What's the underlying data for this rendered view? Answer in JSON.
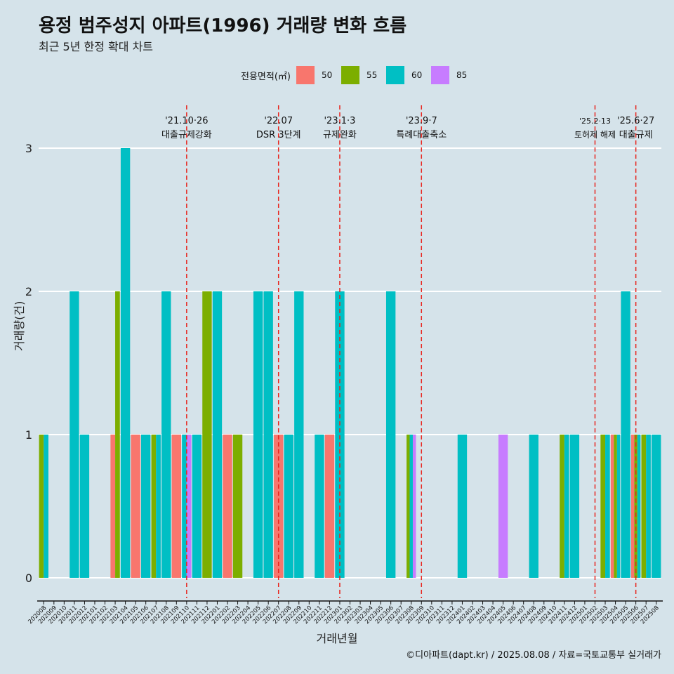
{
  "title": "용정 범주성지 아파트(1996) 거래량 변화 흐름",
  "subtitle": "최근 5년 한정 확대 차트",
  "caption": "©디아파트(dapt.kr) / 2025.08.08 / 자료=국토교통부 실거래가",
  "colors": {
    "50": "#f8766d",
    "55": "#7cae00",
    "60": "#00bfc4",
    "85": "#c77cff",
    "background": "#d5e3ea",
    "event_line": "#e8261f"
  },
  "chart_data": {
    "type": "bar",
    "xlabel": "거래년월",
    "ylabel": "거래량(건)",
    "ylim": [
      0,
      3
    ],
    "yticks": [
      0,
      1,
      2,
      3
    ],
    "legend_title": "전용면적(㎡)",
    "legend_position": "top",
    "grid": true,
    "categories": [
      "202008",
      "202009",
      "202010",
      "202011",
      "202012",
      "202101",
      "202102",
      "202103",
      "202104",
      "202105",
      "202106",
      "202107",
      "202108",
      "202109",
      "202110",
      "202111",
      "202112",
      "202201",
      "202202",
      "202203",
      "202204",
      "202205",
      "202206",
      "202207",
      "202208",
      "202209",
      "202210",
      "202211",
      "202212",
      "202301",
      "202302",
      "202303",
      "202304",
      "202305",
      "202306",
      "202307",
      "202308",
      "202309",
      "202310",
      "202311",
      "202312",
      "202401",
      "202402",
      "202403",
      "202404",
      "202405",
      "202406",
      "202407",
      "202408",
      "202409",
      "202410",
      "202411",
      "202412",
      "202501",
      "202502",
      "202503",
      "202504",
      "202505",
      "202506",
      "202507",
      "202508"
    ],
    "series": [
      {
        "name": "50",
        "values": [
          0,
          0,
          0,
          0,
          0,
          0,
          0,
          1,
          0,
          1,
          0,
          0,
          0,
          1,
          0,
          0,
          0,
          0,
          1,
          0,
          0,
          0,
          0,
          1,
          0,
          0,
          0,
          0,
          1,
          0,
          0,
          0,
          0,
          0,
          0,
          0,
          0,
          0,
          0,
          0,
          0,
          0,
          0,
          0,
          0,
          0,
          0,
          0,
          0,
          0,
          0,
          0,
          0,
          0,
          0,
          0,
          1,
          0,
          1,
          0,
          0
        ]
      },
      {
        "name": "55",
        "values": [
          1,
          0,
          0,
          0,
          0,
          0,
          0,
          2,
          0,
          0,
          0,
          1,
          0,
          0,
          0,
          0,
          2,
          0,
          0,
          1,
          0,
          0,
          0,
          0,
          0,
          0,
          0,
          0,
          0,
          0,
          0,
          0,
          0,
          0,
          0,
          0,
          1,
          0,
          0,
          0,
          0,
          0,
          0,
          0,
          0,
          0,
          0,
          0,
          0,
          0,
          0,
          1,
          0,
          0,
          0,
          1,
          1,
          0,
          1,
          1,
          0
        ]
      },
      {
        "name": "60",
        "values": [
          1,
          0,
          0,
          2,
          1,
          0,
          0,
          0,
          3,
          0,
          1,
          1,
          2,
          0,
          1,
          1,
          0,
          2,
          0,
          0,
          0,
          2,
          2,
          0,
          1,
          2,
          0,
          1,
          0,
          2,
          0,
          0,
          0,
          0,
          2,
          0,
          1,
          0,
          0,
          0,
          0,
          1,
          0,
          0,
          0,
          0,
          0,
          0,
          1,
          0,
          0,
          1,
          1,
          0,
          0,
          1,
          1,
          2,
          1,
          1,
          1
        ]
      },
      {
        "name": "85",
        "values": [
          0,
          0,
          0,
          0,
          0,
          0,
          0,
          0,
          0,
          0,
          0,
          0,
          0,
          0,
          1,
          0,
          0,
          0,
          0,
          0,
          0,
          0,
          0,
          0,
          0,
          0,
          0,
          0,
          0,
          0,
          0,
          0,
          0,
          0,
          0,
          0,
          1,
          0,
          0,
          0,
          0,
          0,
          0,
          0,
          0,
          1,
          0,
          0,
          0,
          0,
          0,
          0,
          0,
          0,
          0,
          0,
          0,
          0,
          0,
          0,
          0
        ]
      }
    ],
    "annotations": [
      {
        "x": "202110",
        "date": "'21.10·26",
        "label": "대출규제강화"
      },
      {
        "x": "202207",
        "date": "'22.07",
        "label": "DSR 3단계"
      },
      {
        "x": "202301",
        "date": "'23.1·3",
        "label": "규제완화"
      },
      {
        "x": "202309",
        "date": "'23.9·7",
        "label": "특례대출축소"
      },
      {
        "x": "202502",
        "date": "'25.2·13",
        "label": "토허제 해제"
      },
      {
        "x": "202506",
        "date": "'25.6·27",
        "label": "대출규제"
      }
    ]
  }
}
